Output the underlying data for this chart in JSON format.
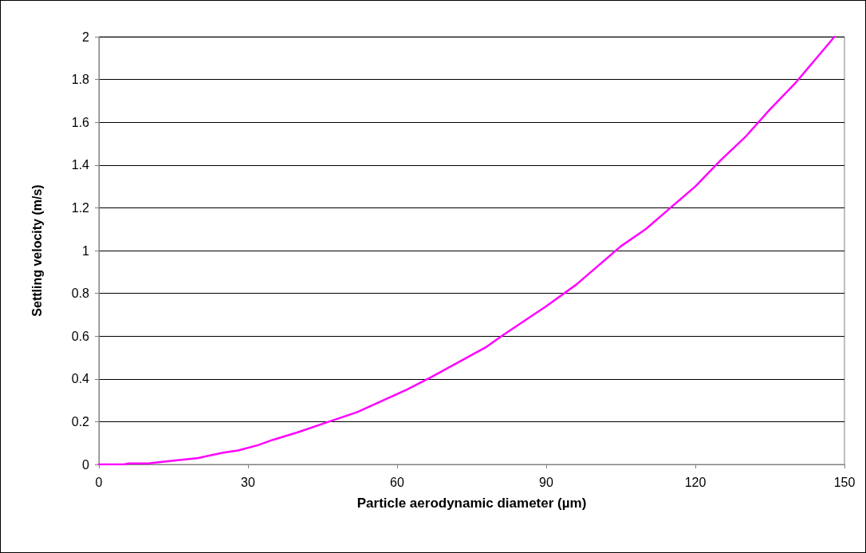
{
  "chart_data": {
    "type": "line",
    "xlabel": "Particle aerodynamic diameter (µm)",
    "ylabel": "Settling velocity (m/s)",
    "x": [
      0,
      5,
      6,
      10,
      12,
      20,
      25,
      28,
      32,
      35,
      40,
      45,
      52,
      62,
      67,
      78,
      81,
      90,
      96,
      105,
      110,
      115,
      120,
      125,
      130,
      135,
      140,
      148
    ],
    "series": [
      {
        "color": "#ff00ff",
        "values": [
          0,
          0,
          0.005,
          0.005,
          0.01,
          0.03,
          0.055,
          0.065,
          0.09,
          0.115,
          0.15,
          0.19,
          0.245,
          0.35,
          0.41,
          0.55,
          0.6,
          0.74,
          0.84,
          1.02,
          1.1,
          1.2,
          1.3,
          1.42,
          1.53,
          1.66,
          1.78,
          2.0
        ]
      }
    ],
    "xlim": [
      0,
      150
    ],
    "xticks": [
      0,
      30,
      60,
      90,
      120,
      150
    ],
    "ylim": [
      0,
      2
    ],
    "yticks": [
      0,
      0.2,
      0.4,
      0.6,
      0.8,
      1,
      1.2,
      1.4,
      1.6,
      1.8,
      2
    ],
    "grid": "y",
    "marker": "none",
    "line_style": "solid"
  }
}
